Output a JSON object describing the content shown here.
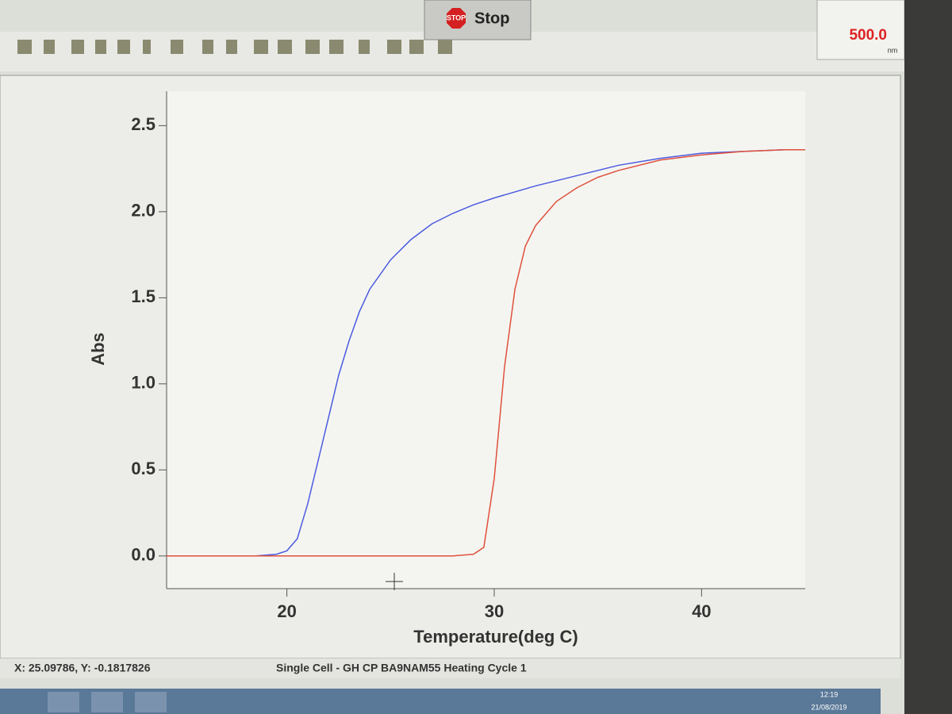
{
  "toolbar": {
    "stop_icon": "STOP",
    "stop_button": "Stop",
    "wavelength": "500.0",
    "wavelength_unit": "nm"
  },
  "status": {
    "cursor": "X: 25.09786, Y: -0.1817826",
    "description": "Single Cell - GH CP BA9NAM55 Heating Cycle  1"
  },
  "taskbar": {
    "time": "12:19",
    "date": "21/08/2019"
  },
  "chart_data": {
    "type": "line",
    "x_label": "Temperature(deg C)",
    "y_label": "Abs",
    "xlim": [
      14.2,
      45
    ],
    "ylim": [
      -0.19,
      2.7
    ],
    "xticks": [
      20,
      30,
      40
    ],
    "yticks": [
      {
        "value": 0,
        "label": "0.0"
      },
      0.5,
      {
        "value": 1,
        "label": "1.0"
      },
      1.5,
      {
        "value": 2,
        "label": "2.0"
      },
      2.5
    ],
    "series": [
      {
        "color": "#4b5be0",
        "x": [
          18.5,
          19.5,
          20,
          20.5,
          21,
          21.5,
          22,
          22.5,
          23,
          23.5,
          24,
          25,
          26,
          27,
          28,
          29,
          30,
          32,
          34,
          36,
          38,
          40,
          42,
          44,
          45
        ],
        "values": [
          0,
          0.01,
          0.03,
          0.1,
          0.3,
          0.55,
          0.8,
          1.05,
          1.25,
          1.42,
          1.55,
          1.72,
          1.84,
          1.93,
          1.99,
          2.04,
          2.08,
          2.15,
          2.21,
          2.27,
          2.31,
          2.34,
          2.35,
          2.36,
          2.36
        ]
      },
      {
        "color": "#e0503c",
        "x": [
          14.2,
          20,
          25,
          28,
          29,
          29.5,
          30,
          30.5,
          31,
          31.5,
          32,
          33,
          34,
          35,
          36,
          38,
          40,
          42,
          44,
          45
        ],
        "values": [
          0,
          0,
          0,
          0,
          0.01,
          0.05,
          0.45,
          1.1,
          1.55,
          1.8,
          1.92,
          2.06,
          2.14,
          2.2,
          2.24,
          2.3,
          2.33,
          2.35,
          2.36,
          2.36
        ]
      }
    ]
  }
}
